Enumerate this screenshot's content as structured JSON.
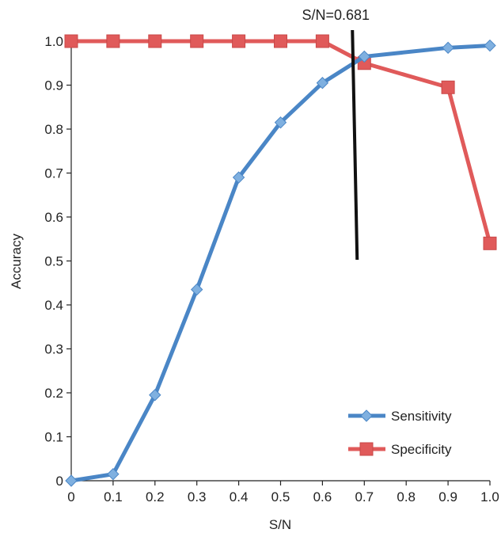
{
  "chart_data": {
    "type": "line",
    "title": "",
    "xlabel": "S/N",
    "ylabel": "Accuracy",
    "xlim": [
      0,
      1.0
    ],
    "ylim": [
      0,
      1.0
    ],
    "x_tick_labels": [
      "0",
      "0.1",
      "0.2",
      "0.3",
      "0.4",
      "0.5",
      "0.6",
      "0.7",
      "0.8",
      "0.9",
      "1.0"
    ],
    "y_tick_labels": [
      "0",
      "0.1",
      "0.2",
      "0.3",
      "0.4",
      "0.5",
      "0.6",
      "0.7",
      "0.8",
      "0.9",
      "1.0"
    ],
    "grid": false,
    "legend_position": "bottom-right",
    "series": [
      {
        "name": "Sensitivity",
        "color": "#4a86c6",
        "marker": "diamond",
        "x": [
          0,
          0.1,
          0.2,
          0.3,
          0.4,
          0.5,
          0.6,
          0.7,
          0.9,
          1.0
        ],
        "y": [
          0.0,
          0.015,
          0.195,
          0.435,
          0.69,
          0.815,
          0.905,
          0.965,
          0.985,
          0.99
        ]
      },
      {
        "name": "Specificity",
        "color": "#e05a5a",
        "marker": "square",
        "x": [
          0,
          0.1,
          0.2,
          0.3,
          0.4,
          0.5,
          0.6,
          0.7,
          0.9,
          1.0
        ],
        "y": [
          1.0,
          1.0,
          1.0,
          1.0,
          1.0,
          1.0,
          1.0,
          0.95,
          0.895,
          0.54
        ]
      }
    ],
    "annotation": {
      "text": "S/N=0.681",
      "x": 0.681,
      "color": "#111111"
    }
  }
}
